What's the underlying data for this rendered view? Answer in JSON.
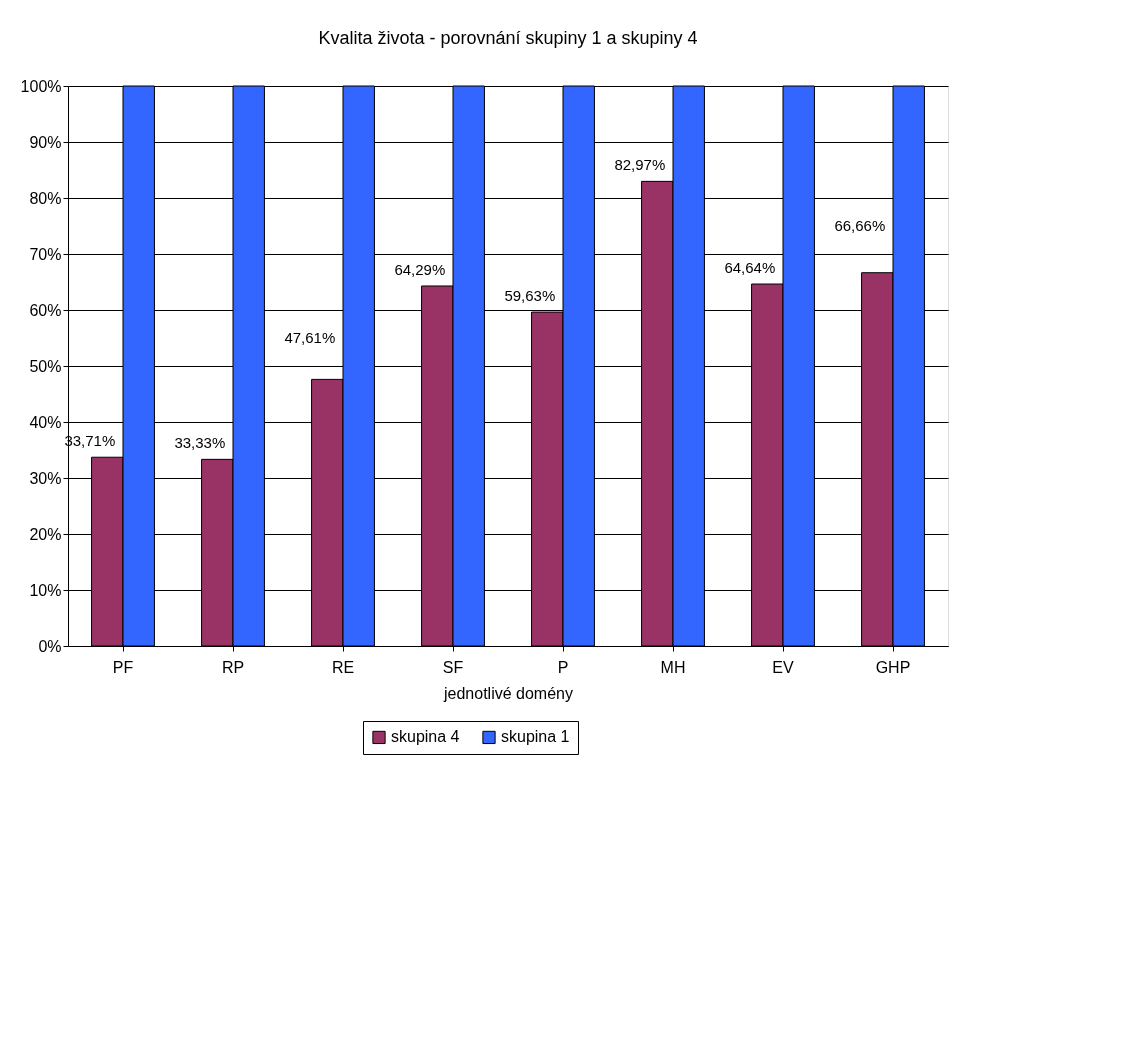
{
  "chart_data": {
    "type": "bar",
    "title": "Kvalita života - porovnání skupiny 1 a skupiny 4",
    "xlabel": "jednotlivé domény",
    "categories": [
      "PF",
      "RP",
      "RE",
      "SF",
      "P",
      "MH",
      "EV",
      "GHP"
    ],
    "series": [
      {
        "name": "skupina 4",
        "color": "#993366",
        "values": [
          33.71,
          33.33,
          47.61,
          64.29,
          59.63,
          82.97,
          64.64,
          66.66
        ],
        "value_labels": [
          "33,71%",
          "33,33%",
          "47,61%",
          "64,29%",
          "59,63%",
          "82,97%",
          "64,64%",
          "66,66%"
        ]
      },
      {
        "name": "skupina 1",
        "color": "#3366ff",
        "values": [
          100,
          100,
          100,
          100,
          100,
          100,
          100,
          100
        ]
      }
    ],
    "ylim": [
      0,
      100
    ],
    "yticks": [
      {
        "value": 0,
        "label": "0%"
      },
      {
        "value": 10,
        "label": "10%"
      },
      {
        "value": 20,
        "label": "20%"
      },
      {
        "value": 30,
        "label": "30%"
      },
      {
        "value": 40,
        "label": "40%"
      },
      {
        "value": 50,
        "label": "50%"
      },
      {
        "value": 60,
        "label": "60%"
      },
      {
        "value": 70,
        "label": "70%"
      },
      {
        "value": 80,
        "label": "80%"
      },
      {
        "value": 90,
        "label": "90%"
      },
      {
        "value": 100,
        "label": "100%"
      }
    ],
    "grid": "y",
    "legend": "bottom"
  }
}
